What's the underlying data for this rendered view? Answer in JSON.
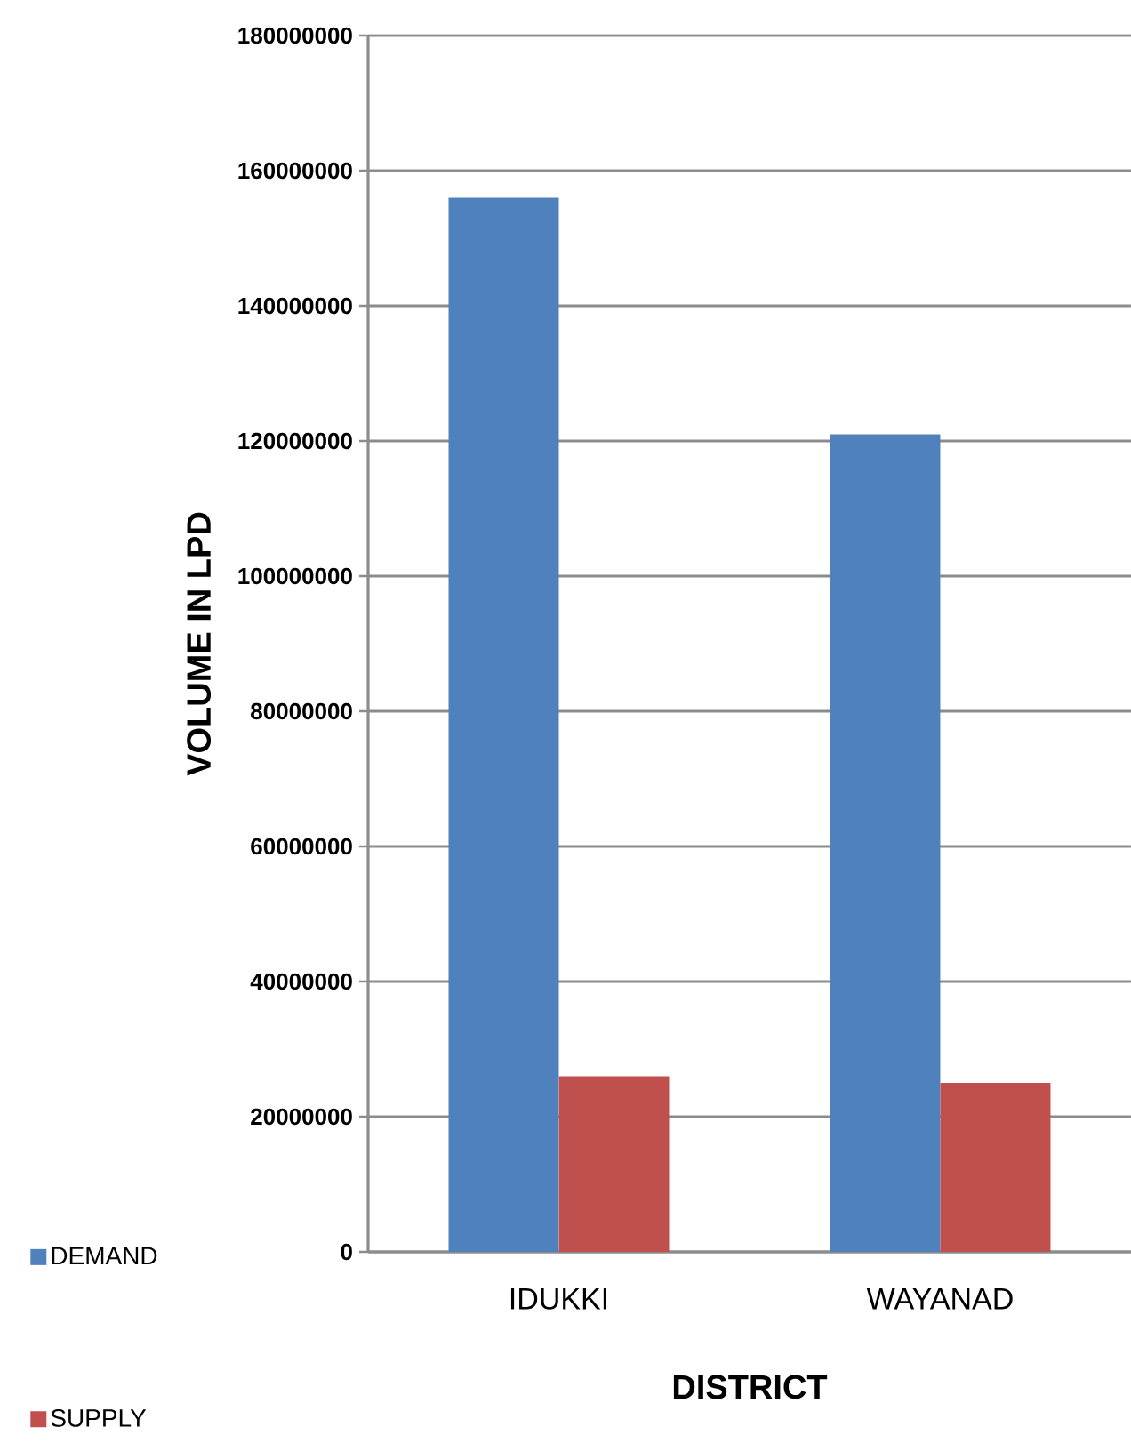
{
  "chart_data": {
    "type": "bar",
    "xlabel": "DISTRICT",
    "ylabel": "VOLUME IN LPD",
    "categories": [
      "IDUKKI",
      "WAYANAD"
    ],
    "series": [
      {
        "name": "DEMAND",
        "color": "#4f81bd",
        "values": [
          156000000,
          121000000
        ]
      },
      {
        "name": "SUPPLY",
        "color": "#c0504d",
        "values": [
          26000000,
          25000000
        ]
      }
    ],
    "ylim": [
      0,
      180000000
    ],
    "yticks": [
      0,
      20000000,
      40000000,
      60000000,
      80000000,
      100000000,
      120000000,
      140000000,
      160000000,
      180000000
    ],
    "grid": "y",
    "legend": "bottom left"
  }
}
